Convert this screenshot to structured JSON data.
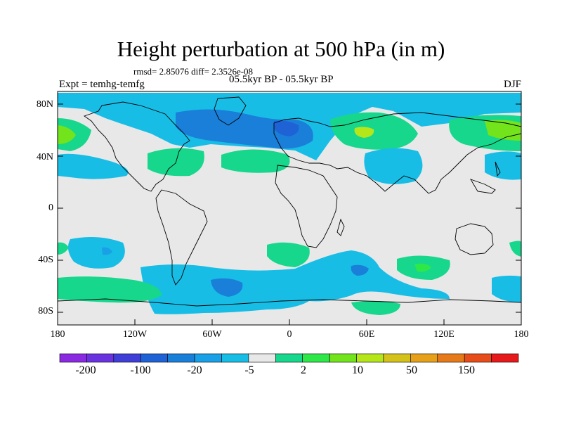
{
  "title": "Height perturbation at 500 hPa (in m)",
  "stats": "rmsd= 2.85076 diff= 2.3526e-08",
  "experiment": "Expt = temhg-temfg",
  "period": "05.5kyr BP - 05.5kyr BP",
  "season": "DJF",
  "lat_labels": [
    "80N",
    "40N",
    "0",
    "40S",
    "80S"
  ],
  "lon_labels": [
    "180",
    "120W",
    "60W",
    "0",
    "60E",
    "120E",
    "180"
  ],
  "colorbar": {
    "labels": [
      "-200",
      "-100",
      "-20",
      "-5",
      "2",
      "10",
      "50",
      "150"
    ],
    "colors": [
      "#8a2be2",
      "#6a33e0",
      "#3f3fd8",
      "#1f62d6",
      "#1a7fd9",
      "#1aa0e6",
      "#18bde6",
      "#e8e8e8",
      "#16d78c",
      "#2ee84a",
      "#73e41c",
      "#b5e61a",
      "#d4c21a",
      "#e6a01a",
      "#e67a1a",
      "#e64d1a",
      "#e61a1a"
    ]
  },
  "legend_colors": {
    "ocean_background": "#e8e8e8",
    "frame": "#000000"
  }
}
